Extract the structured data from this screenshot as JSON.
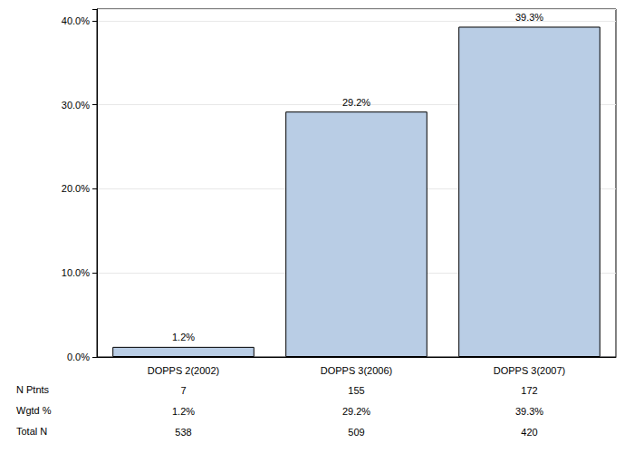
{
  "chart_data": {
    "type": "bar",
    "categories": [
      "DOPPS 2(2002)",
      "DOPPS 3(2006)",
      "DOPPS 3(2007)"
    ],
    "values": [
      1.2,
      29.2,
      39.3
    ],
    "value_labels": [
      "1.2%",
      "29.2%",
      "39.3%"
    ],
    "data_labels": true,
    "color": "#b9cde5",
    "ylim": [
      0,
      41.4
    ],
    "yticks": [
      {
        "value": 0,
        "label": "0.0%"
      },
      {
        "value": 10,
        "label": "10.0%"
      },
      {
        "value": 20,
        "label": "20.0%"
      },
      {
        "value": 30,
        "label": "30.0%"
      },
      {
        "value": 40,
        "label": "40.0%"
      }
    ],
    "grid": true,
    "table": [
      {
        "label": "N Ptnts",
        "values": [
          7,
          155,
          172
        ]
      },
      {
        "label": "Wgtd %",
        "values": [
          "1.2%",
          "29.2%",
          "39.3%"
        ]
      },
      {
        "label": "Total N",
        "values": [
          538,
          509,
          420
        ]
      }
    ]
  }
}
